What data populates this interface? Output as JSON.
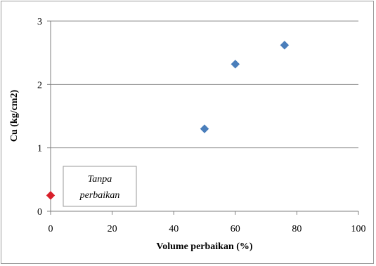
{
  "chart_data": {
    "type": "scatter",
    "xlabel": "Volume perbaikan (%)",
    "ylabel": "Cu (kg/cm2)",
    "xlim": [
      0,
      100
    ],
    "ylim": [
      0,
      3
    ],
    "x_ticks": [
      0,
      20,
      40,
      60,
      80,
      100
    ],
    "y_ticks": [
      0,
      1,
      2,
      3
    ],
    "grid": "horizontal",
    "series": [
      {
        "color": "#4a7ebb",
        "marker": "diamond",
        "points": [
          {
            "x": 50,
            "y": 1.3
          },
          {
            "x": 60,
            "y": 2.32
          },
          {
            "x": 76,
            "y": 2.62
          }
        ]
      },
      {
        "color": "#d81f2a",
        "marker": "diamond",
        "points": [
          {
            "x": 0,
            "y": 0.25
          }
        ]
      }
    ],
    "annotations": [
      {
        "lines": [
          "Tanpa",
          "perbaikan"
        ]
      }
    ]
  }
}
